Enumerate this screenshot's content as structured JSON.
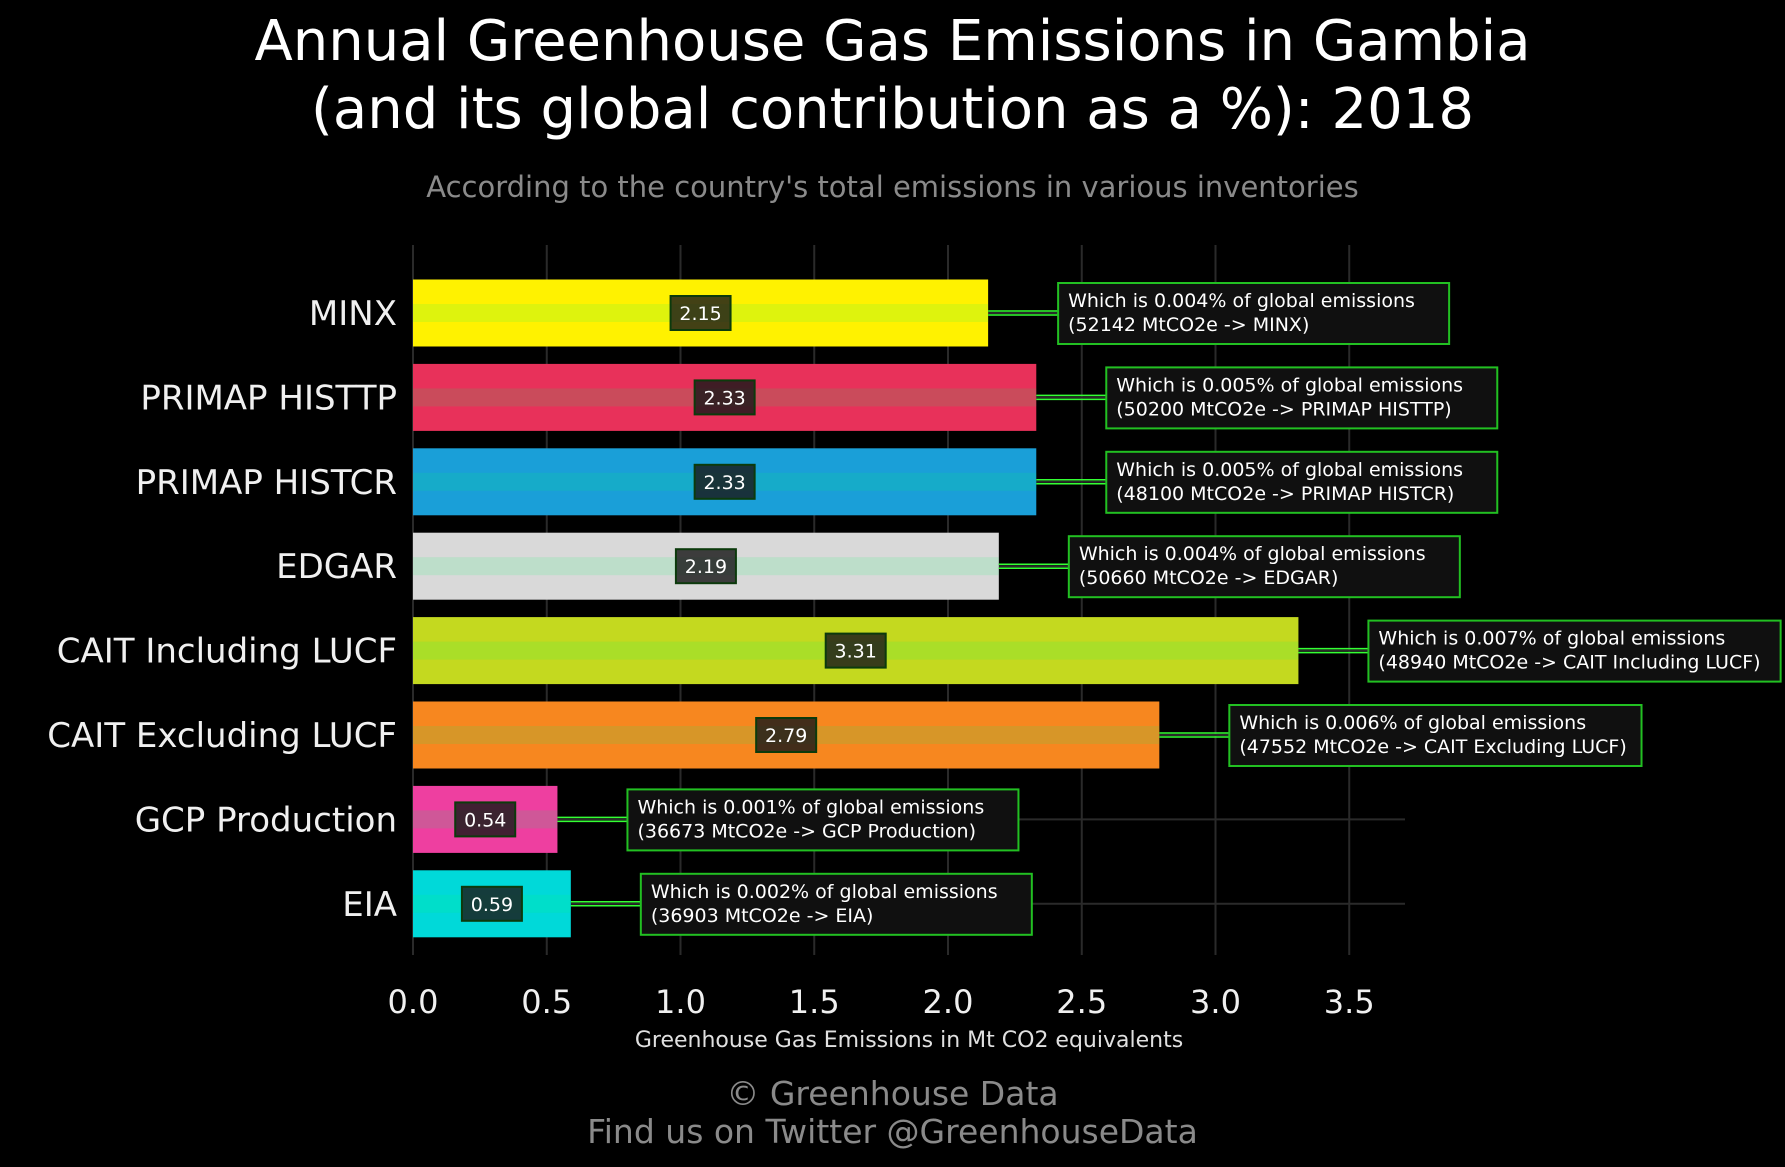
{
  "title_line1": "Annual Greenhouse Gas Emissions in Gambia",
  "title_line2": "(and its global contribution as a %): 2018",
  "subtitle": "According to the country's total emissions in various inventories",
  "footer_line1": "© Greenhouse Data",
  "footer_line2": "Find us on Twitter @GreenhouseData",
  "chart_data": {
    "type": "bar",
    "orientation": "horizontal",
    "categories": [
      "MINX",
      "PRIMAP HISTTP",
      "PRIMAP HISTCR",
      "EDGAR",
      "CAIT Including LUCF",
      "CAIT Excluding LUCF",
      "GCP Production",
      "EIA"
    ],
    "values": [
      2.15,
      2.33,
      2.33,
      2.19,
      3.31,
      2.79,
      0.54,
      0.59
    ],
    "value_labels": [
      "2.15",
      "2.33",
      "2.33",
      "2.19",
      "3.31",
      "2.79",
      "0.54",
      "0.59"
    ],
    "colors": [
      "#fff200",
      "#e8315a",
      "#1a9fd8",
      "#d9d9d9",
      "#c4d91f",
      "#f7871f",
      "#ee3fa0",
      "#00d9d9"
    ],
    "annotations": [
      {
        "line1": "Which is 0.004% of global emissions",
        "line2": "(52142 MtCO2e -> MINX)"
      },
      {
        "line1": "Which is 0.005% of global emissions",
        "line2": "(50200 MtCO2e -> PRIMAP HISTTP)"
      },
      {
        "line1": "Which is 0.005% of global emissions",
        "line2": "(48100 MtCO2e -> PRIMAP HISTCR)"
      },
      {
        "line1": "Which is 0.004% of global emissions",
        "line2": "(50660 MtCO2e -> EDGAR)"
      },
      {
        "line1": "Which is 0.007% of global emissions",
        "line2": "(48940 MtCO2e -> CAIT Including LUCF)"
      },
      {
        "line1": "Which is 0.006% of global emissions",
        "line2": "(47552 MtCO2e -> CAIT Excluding LUCF)"
      },
      {
        "line1": "Which is 0.001% of global emissions",
        "line2": "(36673 MtCO2e -> GCP Production)"
      },
      {
        "line1": "Which is 0.002% of global emissions",
        "line2": "(36903 MtCO2e -> EIA)"
      }
    ],
    "xticks": [
      "0.0",
      "0.5",
      "1.0",
      "1.5",
      "2.0",
      "2.5",
      "3.0",
      "3.5"
    ],
    "xtick_values": [
      0,
      0.5,
      1.0,
      1.5,
      2.0,
      2.5,
      3.0,
      3.5
    ],
    "xlabel": "Greenhouse Gas Emissions in Mt CO2 equivalents",
    "xlim": [
      0,
      3.7
    ],
    "grid": true,
    "annotation_border_color": "#22c022",
    "connector_color": "#33ff33"
  }
}
